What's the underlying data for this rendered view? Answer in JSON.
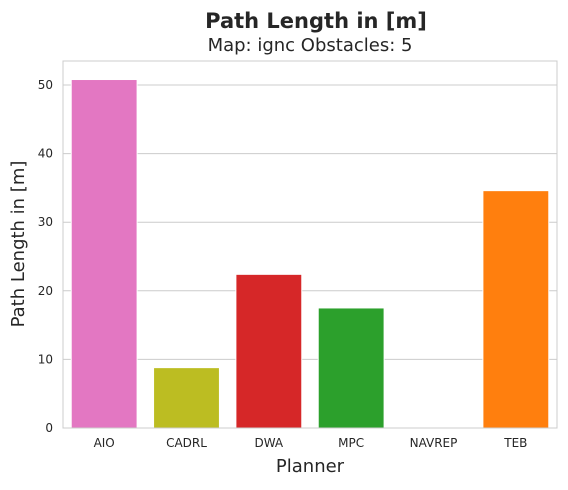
{
  "chart_data": {
    "type": "bar",
    "title": "Path Length in [m]",
    "subtitle": "Map: ignc Obstacles: 5",
    "xlabel": "Planner",
    "ylabel": "Path Length in [m]",
    "categories": [
      "AIO",
      "CADRL",
      "DWA",
      "MPC",
      "NAVREP",
      "TEB"
    ],
    "values": [
      50.8,
      8.8,
      22.4,
      17.5,
      0,
      34.6
    ],
    "colors": [
      "#e377c2",
      "#bcbd22",
      "#d62728",
      "#2ca02c",
      "#9467bd",
      "#ff7f0e"
    ],
    "ylim": [
      0,
      53.5
    ],
    "yticks": [
      0,
      10,
      20,
      30,
      40,
      50
    ],
    "grid": true,
    "grid_axis": "y",
    "grid_color": "#cccccc",
    "axes_edge_color": "#cccccc"
  }
}
